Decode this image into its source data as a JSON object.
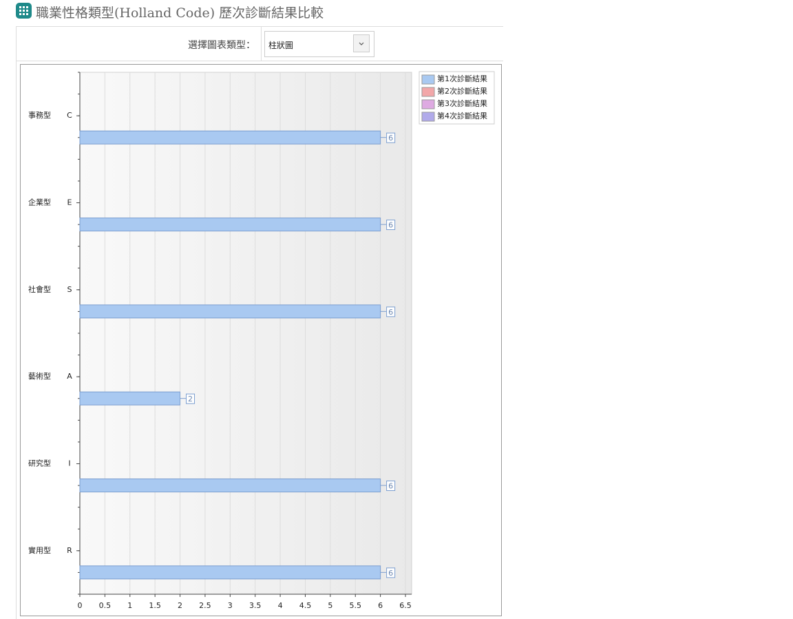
{
  "header": {
    "title": "職業性格類型(Holland Code) 歷次診斷結果比較"
  },
  "form": {
    "label": "選擇圖表類型：",
    "select_value": "柱狀圖"
  },
  "chart_data": {
    "type": "hbar",
    "category_labels": [
      "事務型",
      "企業型",
      "社會型",
      "藝術型",
      "研究型",
      "實用型"
    ],
    "categories": [
      "C",
      "E",
      "S",
      "A",
      "I",
      "R"
    ],
    "series": [
      {
        "name": "第1次診斷結果",
        "color": "#a9c9f1",
        "values": [
          6,
          6,
          6,
          2,
          6,
          6
        ]
      },
      {
        "name": "第2次診斷結果",
        "color": "#f2a7a9",
        "values": [
          null,
          null,
          null,
          null,
          null,
          null
        ]
      },
      {
        "name": "第3次診斷結果",
        "color": "#deaae2",
        "values": [
          null,
          null,
          null,
          null,
          null,
          null
        ]
      },
      {
        "name": "第4次診斷結果",
        "color": "#b1aaea",
        "values": [
          null,
          null,
          null,
          null,
          null,
          null
        ]
      }
    ],
    "xlim": [
      0,
      6.5
    ],
    "xticks": [
      0,
      0.5,
      1,
      1.5,
      2,
      2.5,
      3,
      3.5,
      4,
      4.5,
      5,
      5.5,
      6,
      6.5
    ],
    "grid": true,
    "legend": "top-right"
  }
}
